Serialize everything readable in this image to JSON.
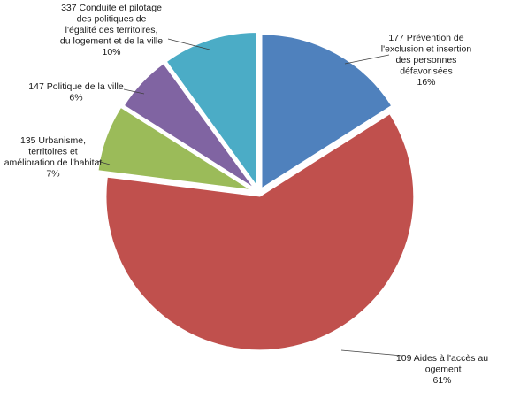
{
  "chart_data": {
    "type": "pie",
    "title": "",
    "exploded": true,
    "start_angle_deg": 0,
    "direction": "clockwise",
    "slices": [
      {
        "name_lines": [
          "177 Prévention de",
          "l'exclusion et insertion",
          "des personnes",
          "défavorisées"
        ],
        "percent_label": "16%",
        "value": 16,
        "color": "#4f81bd"
      },
      {
        "name_lines": [
          "109 Aides à l'accès au",
          "logement"
        ],
        "percent_label": "61%",
        "value": 61,
        "color": "#c0504d"
      },
      {
        "name_lines": [
          "135 Urbanisme,",
          "territoires et",
          "amélioration de l'habitat"
        ],
        "percent_label": "7%",
        "value": 7,
        "color": "#9bbb59"
      },
      {
        "name_lines": [
          "147 Politique de la ville"
        ],
        "percent_label": "6%",
        "value": 6,
        "color": "#8064a2"
      },
      {
        "name_lines": [
          "337 Conduite et pilotage",
          "des politiques de",
          "l'égalité des territoires,",
          "du logement et de la ville"
        ],
        "percent_label": "10%",
        "value": 10,
        "color": "#4bacc6"
      }
    ]
  }
}
